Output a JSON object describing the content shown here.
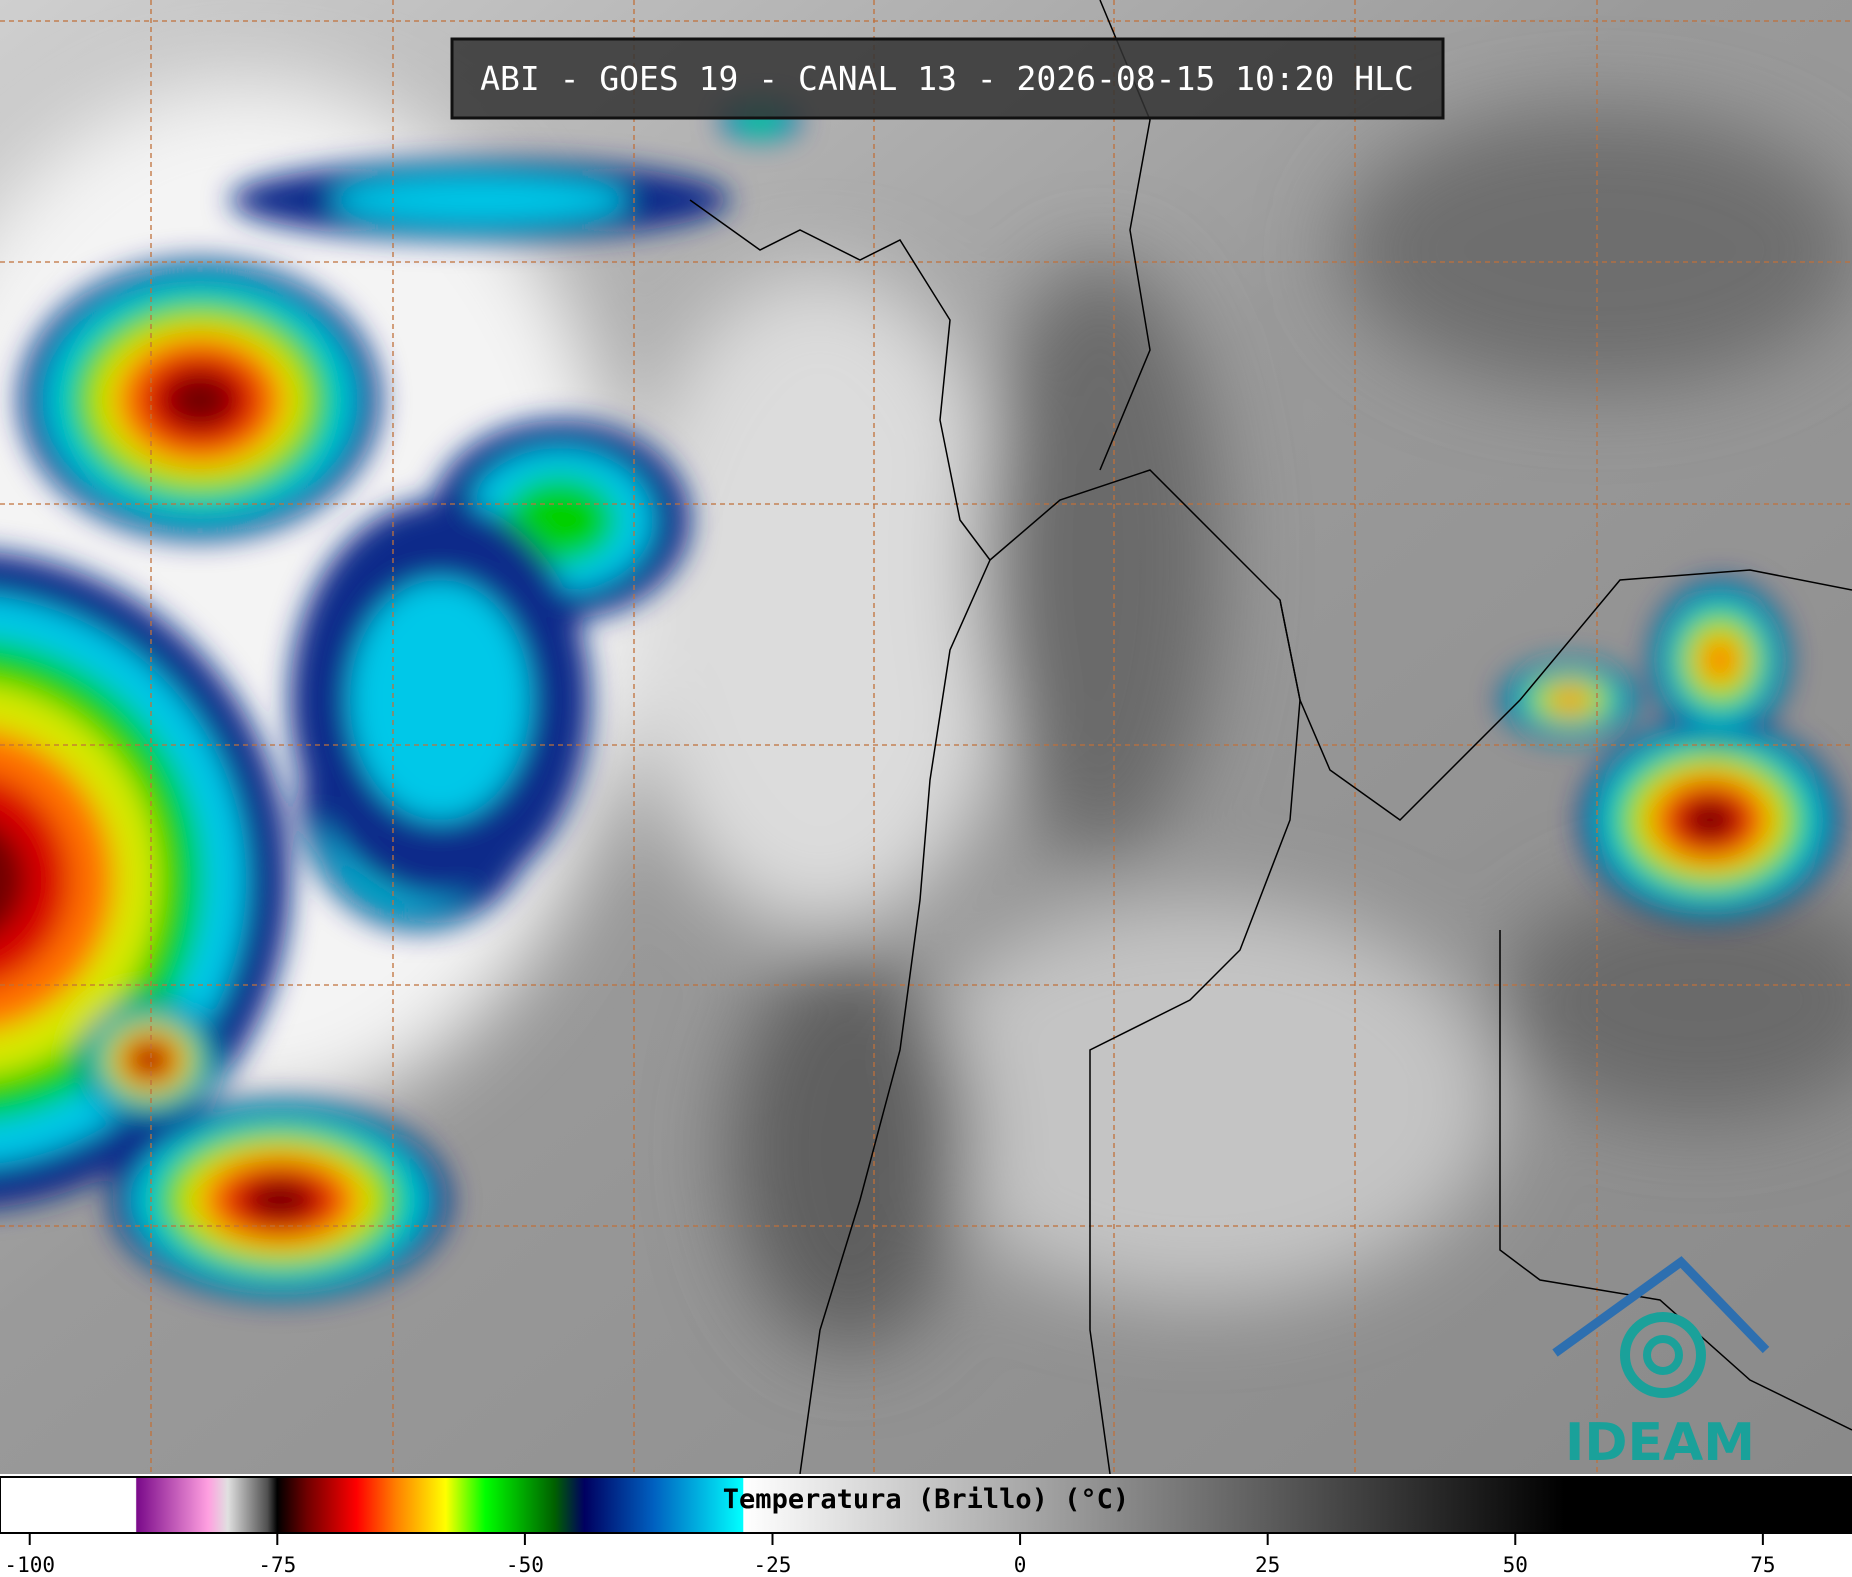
{
  "title": "ABI - GOES 19 - CANAL 13 - 2026-08-15 10:20 HLC",
  "logo": "IDEAM",
  "colorbar": {
    "label": "Temperatura (Brillo) (°C)",
    "xlim": [
      -103,
      84
    ],
    "xticks": [
      -100,
      -75,
      -50,
      -25,
      0,
      25,
      50,
      75
    ],
    "stops": [
      {
        "value": -103,
        "color": "#ffffff"
      },
      {
        "value": -89.3,
        "color": "#ffffff"
      },
      {
        "value": -89.2,
        "color": "#7a0a8a"
      },
      {
        "value": -82,
        "color": "#ff9fe0"
      },
      {
        "value": -80,
        "color": "#e0e0e0"
      },
      {
        "value": -76,
        "color": "#505050"
      },
      {
        "value": -75,
        "color": "#000000"
      },
      {
        "value": -72,
        "color": "#700000"
      },
      {
        "value": -67,
        "color": "#ff0000"
      },
      {
        "value": -63,
        "color": "#ff8000"
      },
      {
        "value": -58,
        "color": "#ffff00"
      },
      {
        "value": -54,
        "color": "#00ff00"
      },
      {
        "value": -47,
        "color": "#006000"
      },
      {
        "value": -44,
        "color": "#000060"
      },
      {
        "value": -37,
        "color": "#0060c0"
      },
      {
        "value": -28,
        "color": "#00ffff"
      },
      {
        "value": -27.9,
        "color": "#ffffff"
      },
      {
        "value": 55,
        "color": "#000000"
      },
      {
        "value": 84,
        "color": "#000000"
      }
    ]
  }
}
